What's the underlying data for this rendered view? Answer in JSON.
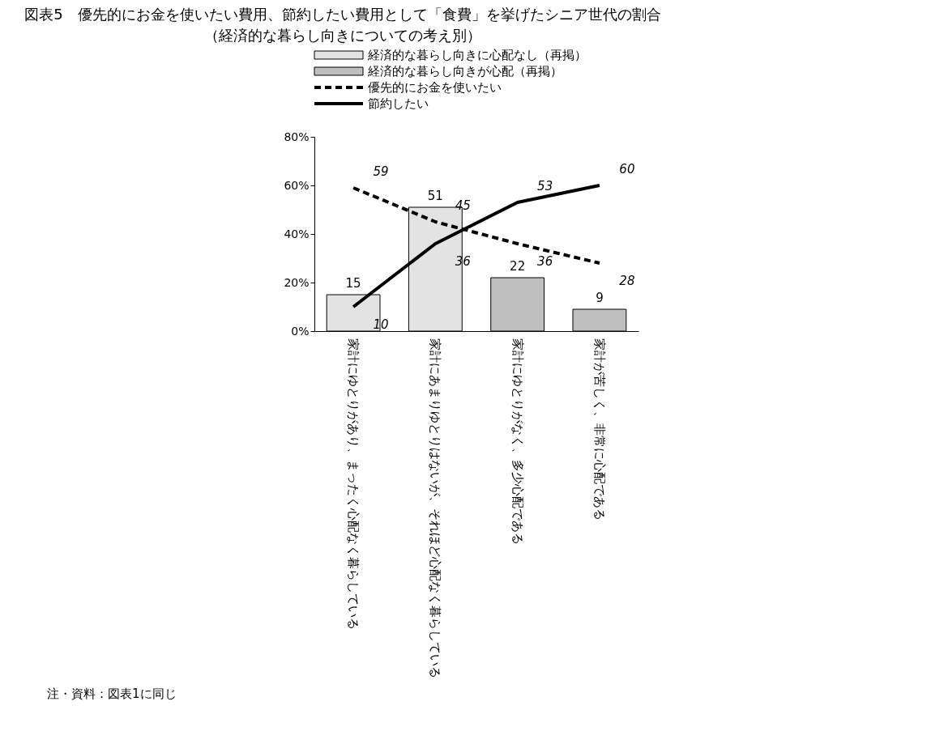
{
  "chart_data": {
    "type": "bar",
    "title": "図表5　優先的にお金を使いたい費用、節約したい費用として「食費」を挙げたシニア世代の割合",
    "subtitle": "（経済的な暮らし向きについての考え別）",
    "categories": [
      "家計にゆとりがあり、まったく心配なく暮らしている",
      "家計にあまりゆとりはないが、それほど心配なく暮らしている",
      "家計にゆとりがなく、多少心配である",
      "家計が苦しく、非常に心配である"
    ],
    "series": [
      {
        "name": "経済的な暮らし向きに心配なし（再掲）",
        "color": "#e3e3e3",
        "values": [
          15,
          51,
          null,
          null
        ]
      },
      {
        "name": "経済的な暮らし向きが心配（再掲）",
        "color": "#bfbfbf",
        "values": [
          null,
          null,
          22,
          9
        ]
      },
      {
        "name": "優先的にお金を使いたい",
        "type": "line",
        "color": "#000000",
        "line_style": "dashed",
        "values": [
          59,
          45,
          36,
          28
        ]
      },
      {
        "name": "節約したい",
        "type": "line",
        "color": "#000000",
        "line_style": "solid",
        "values": [
          10,
          36,
          53,
          60
        ]
      }
    ],
    "ylim": [
      0,
      80
    ],
    "yticks": [
      {
        "value": 0,
        "label": "0%"
      },
      {
        "value": 20,
        "label": "20%"
      },
      {
        "value": 40,
        "label": "40%"
      },
      {
        "value": 60,
        "label": "60%"
      },
      {
        "value": 80,
        "label": "80%"
      }
    ],
    "data_labels": true,
    "grid": false,
    "legend": "top",
    "marker": "none",
    "annotations": [
      "注・資料：図表1に同じ"
    ]
  }
}
